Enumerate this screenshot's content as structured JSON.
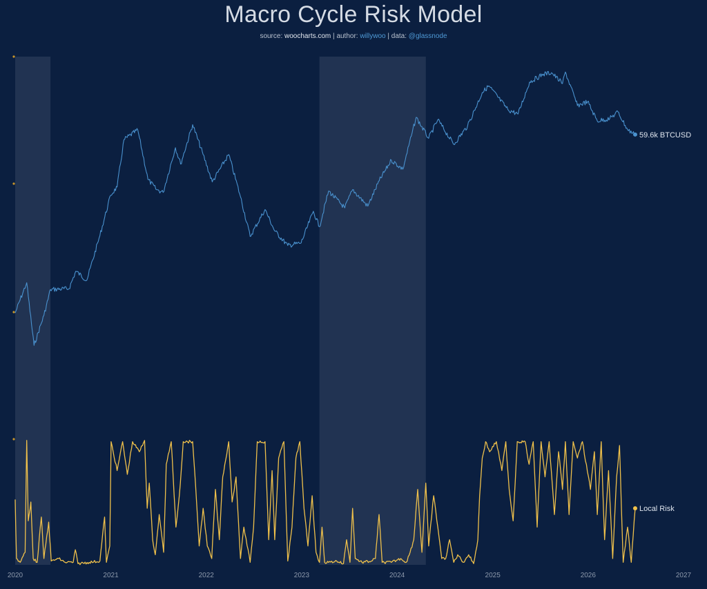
{
  "header": {
    "title": "Macro Cycle Risk Model",
    "subtitle_parts": {
      "source_label": "source:",
      "source_value": "woocharts.com",
      "sep1": "|",
      "author_label": "author:",
      "author_value": "willywoo",
      "sep2": "|",
      "data_label": "data:",
      "data_value": "@glassnode"
    }
  },
  "colors": {
    "background": "#0b1f40",
    "shade": "#2a3b58",
    "price_line": "#4a92cf",
    "risk_line": "#f0c14b",
    "axis_dot": "#c9962a"
  },
  "chart_data": {
    "type": "line",
    "x_axis": {
      "range": [
        "2020-01-01",
        "2027-01-01"
      ],
      "ticks": [
        "2020",
        "2021",
        "2022",
        "2023",
        "2024",
        "2025",
        "2026",
        "2027"
      ]
    },
    "shaded_regions": [
      {
        "start": "2020-01-01",
        "end": "2020-05-15"
      },
      {
        "start": "2023-03-10",
        "end": "2024-04-20"
      }
    ],
    "series": [
      {
        "name": "BTCUSD",
        "panel": "upper",
        "scale": "log",
        "end_label": "59.6k BTCUSD",
        "y_range": [
          4000,
          150000
        ],
        "points": [
          [
            "2020-01-01",
            7200
          ],
          [
            "2020-02-14",
            10300
          ],
          [
            "2020-03-13",
            4900
          ],
          [
            "2020-04-20",
            7000
          ],
          [
            "2020-05-15",
            9500
          ],
          [
            "2020-07-25",
            9600
          ],
          [
            "2020-08-20",
            11800
          ],
          [
            "2020-10-01",
            10600
          ],
          [
            "2020-11-20",
            18000
          ],
          [
            "2020-12-31",
            29000
          ],
          [
            "2021-01-25",
            32000
          ],
          [
            "2021-02-20",
            56000
          ],
          [
            "2021-04-14",
            63000
          ],
          [
            "2021-05-23",
            35000
          ],
          [
            "2021-06-25",
            31000
          ],
          [
            "2021-07-20",
            30000
          ],
          [
            "2021-09-05",
            51000
          ],
          [
            "2021-09-25",
            42000
          ],
          [
            "2021-11-10",
            67000
          ],
          [
            "2021-12-20",
            47000
          ],
          [
            "2022-01-24",
            34000
          ],
          [
            "2022-03-28",
            47000
          ],
          [
            "2022-05-12",
            28500
          ],
          [
            "2022-06-18",
            17800
          ],
          [
            "2022-08-14",
            24500
          ],
          [
            "2022-09-20",
            19000
          ],
          [
            "2022-11-09",
            16000
          ],
          [
            "2022-12-30",
            16500
          ],
          [
            "2023-02-15",
            24000
          ],
          [
            "2023-03-10",
            20000
          ],
          [
            "2023-04-14",
            30500
          ],
          [
            "2023-06-15",
            25000
          ],
          [
            "2023-07-15",
            31000
          ],
          [
            "2023-09-11",
            25500
          ],
          [
            "2023-10-25",
            34500
          ],
          [
            "2023-12-10",
            44000
          ],
          [
            "2024-01-23",
            39500
          ],
          [
            "2024-02-28",
            61000
          ],
          [
            "2024-03-14",
            73000
          ],
          [
            "2024-05-01",
            57000
          ],
          [
            "2024-06-05",
            71000
          ],
          [
            "2024-08-05",
            53000
          ],
          [
            "2024-09-27",
            66000
          ],
          [
            "2024-11-22",
            98000
          ],
          [
            "2024-12-17",
            106000
          ],
          [
            "2025-02-28",
            80000
          ],
          [
            "2025-04-08",
            76000
          ],
          [
            "2025-05-22",
            111000
          ],
          [
            "2025-07-14",
            122000
          ],
          [
            "2025-08-14",
            124000
          ],
          [
            "2025-09-25",
            109000
          ],
          [
            "2025-10-06",
            125000
          ],
          [
            "2025-11-21",
            84000
          ],
          [
            "2025-12-30",
            88000
          ],
          [
            "2026-02-05",
            70000
          ],
          [
            "2026-03-25",
            72000
          ],
          [
            "2026-04-25",
            78000
          ],
          [
            "2026-06-01",
            63000
          ],
          [
            "2026-06-30",
            59600
          ]
        ]
      },
      {
        "name": "Local Risk",
        "panel": "lower",
        "end_label": "Local Risk",
        "y_range": [
          0,
          1
        ],
        "points": [
          [
            "2020-01-01",
            0.52
          ],
          [
            "2020-01-06",
            0.05
          ],
          [
            "2020-01-20",
            0.02
          ],
          [
            "2020-02-08",
            0.1
          ],
          [
            "2020-02-14",
            0.99
          ],
          [
            "2020-02-20",
            0.35
          ],
          [
            "2020-03-01",
            0.5
          ],
          [
            "2020-03-10",
            0.05
          ],
          [
            "2020-03-25",
            0.02
          ],
          [
            "2020-04-10",
            0.38
          ],
          [
            "2020-04-20",
            0.05
          ],
          [
            "2020-05-08",
            0.34
          ],
          [
            "2020-05-18",
            0.03
          ],
          [
            "2020-06-15",
            0.05
          ],
          [
            "2020-07-10",
            0.02
          ],
          [
            "2020-08-10",
            0.02
          ],
          [
            "2020-08-18",
            0.12
          ],
          [
            "2020-08-28",
            0.01
          ],
          [
            "2020-10-10",
            0.02
          ],
          [
            "2020-11-20",
            0.03
          ],
          [
            "2020-12-08",
            0.38
          ],
          [
            "2020-12-15",
            0.02
          ],
          [
            "2020-12-28",
            0.15
          ],
          [
            "2021-01-02",
            0.98
          ],
          [
            "2021-01-25",
            0.75
          ],
          [
            "2021-02-15",
            0.98
          ],
          [
            "2021-03-05",
            0.72
          ],
          [
            "2021-03-25",
            0.98
          ],
          [
            "2021-04-20",
            0.9
          ],
          [
            "2021-05-10",
            0.99
          ],
          [
            "2021-05-20",
            0.45
          ],
          [
            "2021-05-28",
            0.65
          ],
          [
            "2021-06-10",
            0.2
          ],
          [
            "2021-06-20",
            0.08
          ],
          [
            "2021-07-05",
            0.4
          ],
          [
            "2021-07-22",
            0.1
          ],
          [
            "2021-08-01",
            0.8
          ],
          [
            "2021-08-20",
            0.98
          ],
          [
            "2021-09-07",
            0.3
          ],
          [
            "2021-09-20",
            0.55
          ],
          [
            "2021-10-05",
            0.98
          ],
          [
            "2021-11-10",
            0.98
          ],
          [
            "2021-11-25",
            0.5
          ],
          [
            "2021-12-05",
            0.15
          ],
          [
            "2021-12-20",
            0.45
          ],
          [
            "2022-01-05",
            0.15
          ],
          [
            "2022-01-22",
            0.05
          ],
          [
            "2022-02-05",
            0.6
          ],
          [
            "2022-02-20",
            0.2
          ],
          [
            "2022-03-05",
            0.7
          ],
          [
            "2022-03-28",
            0.98
          ],
          [
            "2022-04-10",
            0.5
          ],
          [
            "2022-04-25",
            0.7
          ],
          [
            "2022-05-12",
            0.05
          ],
          [
            "2022-05-25",
            0.3
          ],
          [
            "2022-06-18",
            0.02
          ],
          [
            "2022-07-01",
            0.3
          ],
          [
            "2022-07-15",
            0.98
          ],
          [
            "2022-08-14",
            0.98
          ],
          [
            "2022-08-28",
            0.2
          ],
          [
            "2022-09-10",
            0.75
          ],
          [
            "2022-09-20",
            0.2
          ],
          [
            "2022-10-05",
            0.85
          ],
          [
            "2022-10-25",
            0.98
          ],
          [
            "2022-11-09",
            0.03
          ],
          [
            "2022-11-25",
            0.3
          ],
          [
            "2022-12-10",
            0.85
          ],
          [
            "2022-12-25",
            0.98
          ],
          [
            "2023-01-10",
            0.45
          ],
          [
            "2023-01-25",
            0.15
          ],
          [
            "2023-02-10",
            0.55
          ],
          [
            "2023-02-25",
            0.1
          ],
          [
            "2023-03-10",
            0.02
          ],
          [
            "2023-03-20",
            0.3
          ],
          [
            "2023-03-30",
            0.02
          ],
          [
            "2023-04-14",
            0.02
          ],
          [
            "2023-05-15",
            0.03
          ],
          [
            "2023-06-10",
            0.01
          ],
          [
            "2023-06-22",
            0.2
          ],
          [
            "2023-07-05",
            0.02
          ],
          [
            "2023-07-15",
            0.45
          ],
          [
            "2023-07-25",
            0.05
          ],
          [
            "2023-08-20",
            0.02
          ],
          [
            "2023-09-25",
            0.03
          ],
          [
            "2023-10-10",
            0.05
          ],
          [
            "2023-10-24",
            0.4
          ],
          [
            "2023-11-05",
            0.02
          ],
          [
            "2023-12-10",
            0.02
          ],
          [
            "2024-01-15",
            0.05
          ],
          [
            "2024-02-05",
            0.02
          ],
          [
            "2024-02-20",
            0.1
          ],
          [
            "2024-03-05",
            0.2
          ],
          [
            "2024-03-14",
            0.45
          ],
          [
            "2024-03-20",
            0.6
          ],
          [
            "2024-04-05",
            0.1
          ],
          [
            "2024-04-20",
            0.65
          ],
          [
            "2024-05-01",
            0.15
          ],
          [
            "2024-05-20",
            0.55
          ],
          [
            "2024-06-05",
            0.3
          ],
          [
            "2024-06-20",
            0.05
          ],
          [
            "2024-07-05",
            0.05
          ],
          [
            "2024-07-20",
            0.2
          ],
          [
            "2024-08-05",
            0.02
          ],
          [
            "2024-08-20",
            0.08
          ],
          [
            "2024-09-10",
            0.02
          ],
          [
            "2024-10-01",
            0.08
          ],
          [
            "2024-10-20",
            0.01
          ],
          [
            "2024-11-05",
            0.2
          ],
          [
            "2024-11-12",
            0.55
          ],
          [
            "2024-11-22",
            0.85
          ],
          [
            "2024-12-05",
            0.98
          ],
          [
            "2024-12-20",
            0.9
          ],
          [
            "2025-01-15",
            0.98
          ],
          [
            "2025-02-05",
            0.75
          ],
          [
            "2025-02-20",
            0.98
          ],
          [
            "2025-03-05",
            0.6
          ],
          [
            "2025-03-20",
            0.35
          ],
          [
            "2025-04-05",
            0.98
          ],
          [
            "2025-05-05",
            0.98
          ],
          [
            "2025-05-20",
            0.8
          ],
          [
            "2025-06-05",
            0.98
          ],
          [
            "2025-06-20",
            0.3
          ],
          [
            "2025-07-05",
            0.98
          ],
          [
            "2025-07-20",
            0.7
          ],
          [
            "2025-08-05",
            0.98
          ],
          [
            "2025-08-25",
            0.4
          ],
          [
            "2025-09-10",
            0.9
          ],
          [
            "2025-09-25",
            0.6
          ],
          [
            "2025-10-06",
            0.98
          ],
          [
            "2025-10-20",
            0.4
          ],
          [
            "2025-11-05",
            0.98
          ],
          [
            "2025-11-21",
            0.85
          ],
          [
            "2025-12-10",
            0.98
          ],
          [
            "2026-01-10",
            0.6
          ],
          [
            "2026-01-25",
            0.9
          ],
          [
            "2026-02-05",
            0.4
          ],
          [
            "2026-02-20",
            0.98
          ],
          [
            "2026-03-05",
            0.2
          ],
          [
            "2026-03-20",
            0.75
          ],
          [
            "2026-04-05",
            0.05
          ],
          [
            "2026-04-20",
            0.7
          ],
          [
            "2026-05-01",
            0.95
          ],
          [
            "2026-05-15",
            0.02
          ],
          [
            "2026-06-01",
            0.3
          ],
          [
            "2026-06-15",
            0.02
          ],
          [
            "2026-06-30",
            0.45
          ]
        ]
      }
    ]
  }
}
